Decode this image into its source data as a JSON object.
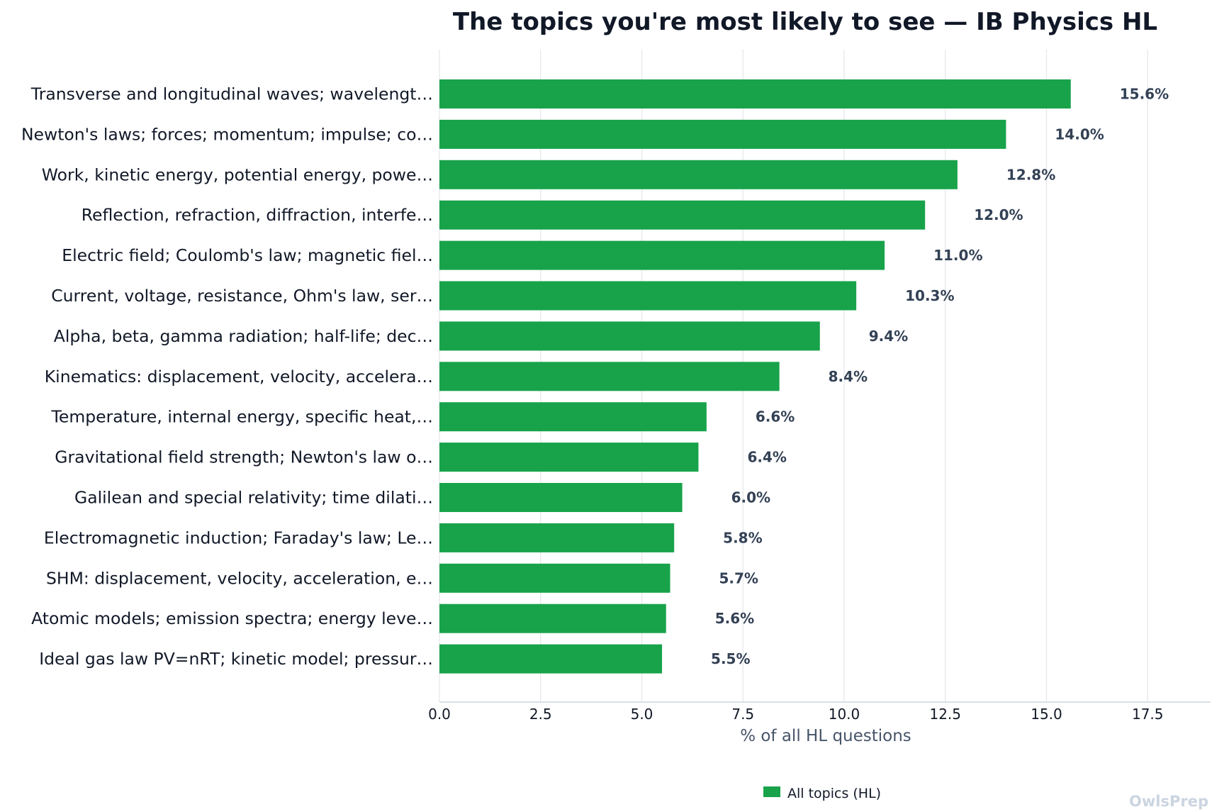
{
  "chart_data": {
    "type": "bar",
    "orientation": "horizontal",
    "title": "The topics you're most likely to see — IB Physics HL",
    "xlabel": "% of all HL questions",
    "ylabel": "",
    "xlim": [
      0,
      19
    ],
    "xticks": [
      "0.0",
      "2.5",
      "5.0",
      "7.5",
      "10.0",
      "12.5",
      "15.0",
      "17.5"
    ],
    "grid": "vertical",
    "legend_position": "bottom",
    "bar_color": "#18a34a",
    "categories": [
      "Transverse and longitudinal waves; wavelengt…",
      "Newton's laws; forces; momentum; impulse; co…",
      "Work, kinetic energy, potential energy, powe…",
      "Reflection, refraction, diffraction, interfe…",
      "Electric field; Coulomb's law; magnetic fiel…",
      "Current, voltage, resistance, Ohm's law, ser…",
      "Alpha, beta, gamma radiation; half-life; dec…",
      "Kinematics: displacement, velocity, accelera…",
      "Temperature, internal energy, specific heat,…",
      "Gravitational field strength; Newton's law o…",
      "Galilean and special relativity; time dilati…",
      "Electromagnetic induction; Faraday's law; Le…",
      "SHM: displacement, velocity, acceleration, e…",
      "Atomic models; emission spectra; energy leve…",
      "Ideal gas law PV=nRT; kinetic model; pressur…"
    ],
    "series": [
      {
        "name": "All topics (HL)",
        "values": [
          15.6,
          14.0,
          12.8,
          12.0,
          11.0,
          10.3,
          9.4,
          8.4,
          6.6,
          6.4,
          6.0,
          5.8,
          5.7,
          5.6,
          5.5
        ],
        "labels": [
          "15.6%",
          "14.0%",
          "12.8%",
          "12.0%",
          "11.0%",
          "10.3%",
          "9.4%",
          "8.4%",
          "6.6%",
          "6.4%",
          "6.0%",
          "5.8%",
          "5.7%",
          "5.6%",
          "5.5%"
        ]
      }
    ]
  },
  "watermark": "OwlsPrep"
}
